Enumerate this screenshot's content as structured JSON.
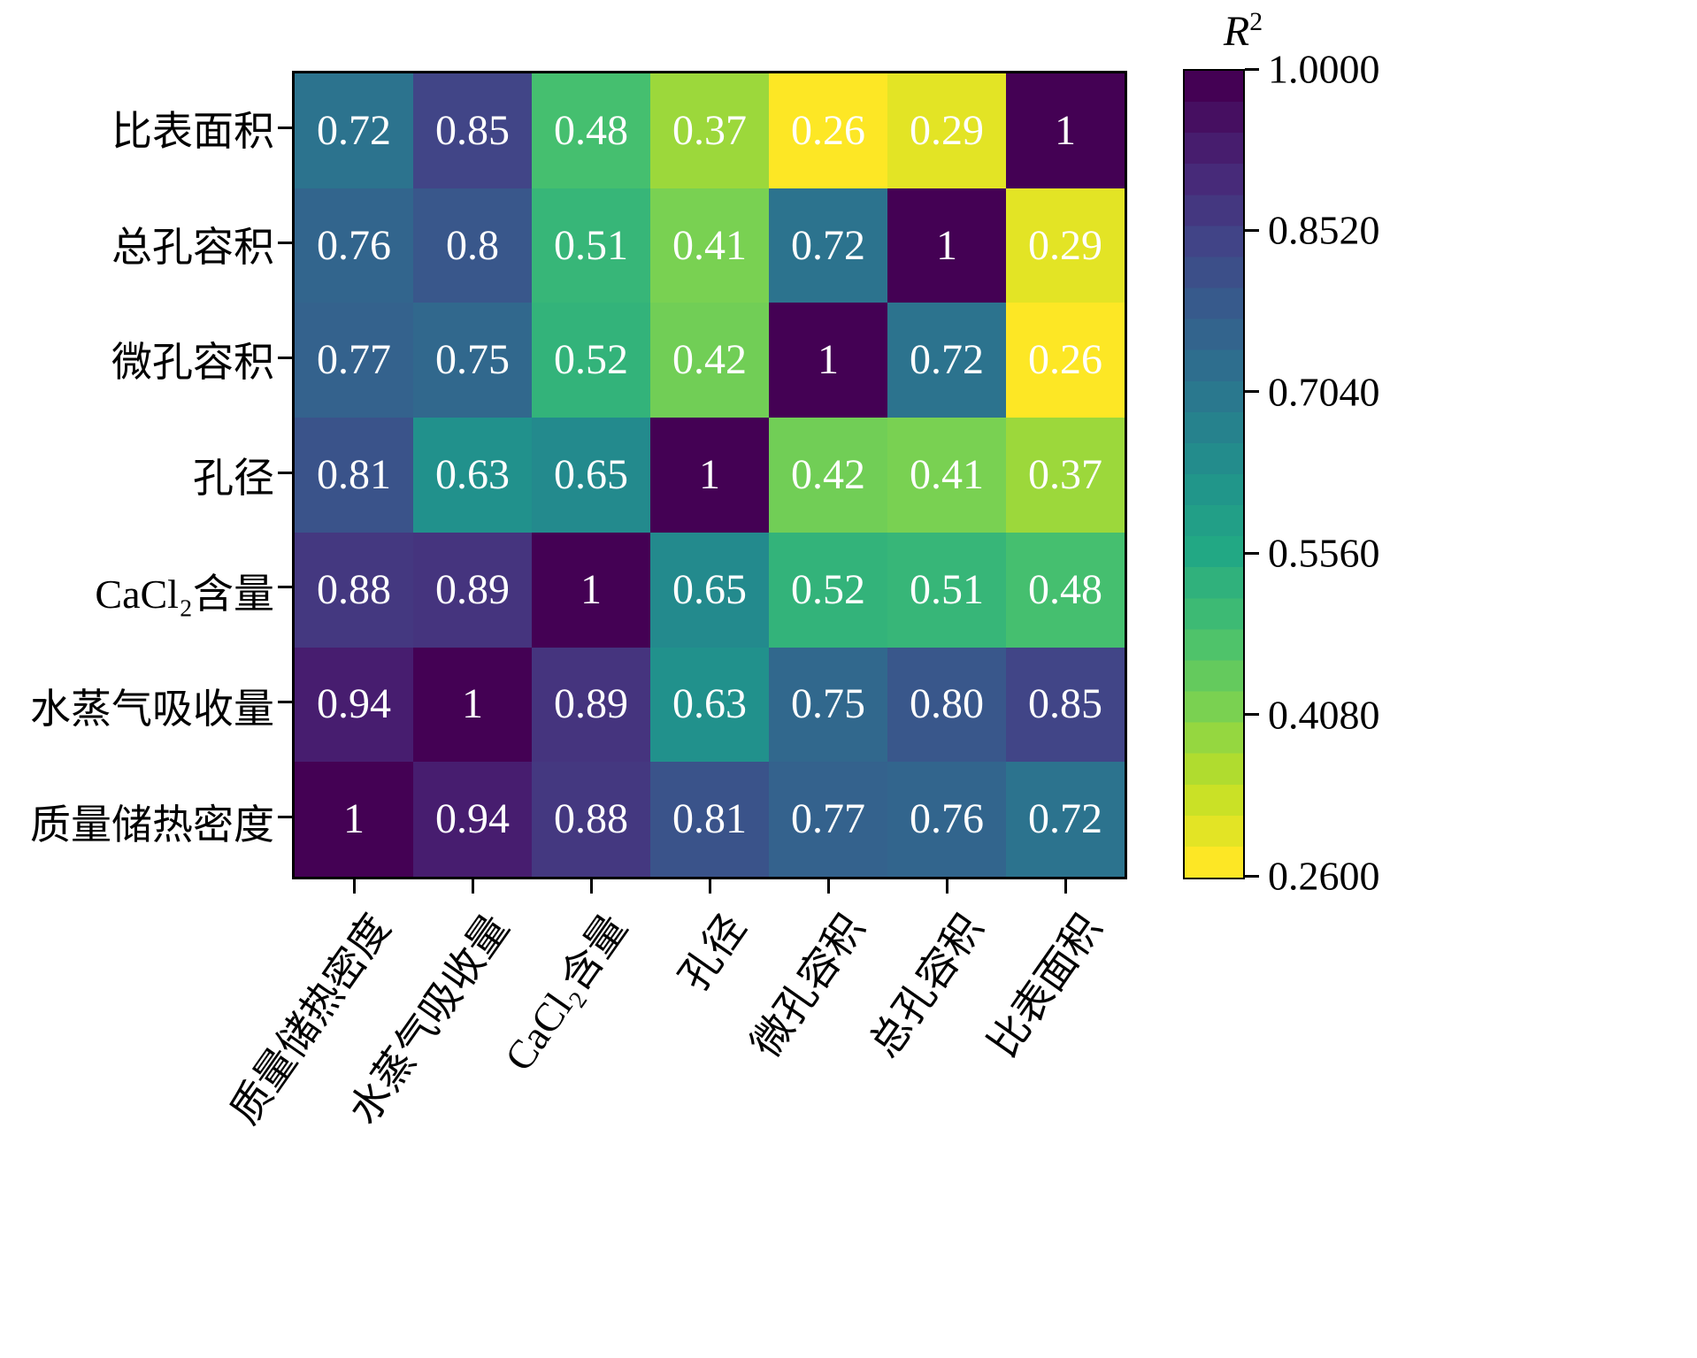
{
  "chart_data": {
    "type": "heatmap",
    "title": "",
    "row_labels_top_to_bottom": [
      "比表面积",
      "总孔容积",
      "微孔容积",
      "孔径",
      "CaCl₂含量",
      "水蒸气吸收量",
      "质量储热密度"
    ],
    "column_labels_left_to_right": [
      "质量储热密度",
      "水蒸气吸收量",
      "CaCl₂含量",
      "孔径",
      "微孔容积",
      "总孔容积",
      "比表面积"
    ],
    "values_display": [
      [
        "0.72",
        "0.85",
        "0.48",
        "0.37",
        "0.26",
        "0.29",
        "1"
      ],
      [
        "0.76",
        "0.8",
        "0.51",
        "0.41",
        "0.72",
        "1",
        "0.29"
      ],
      [
        "0.77",
        "0.75",
        "0.52",
        "0.42",
        "1",
        "0.72",
        "0.26"
      ],
      [
        "0.81",
        "0.63",
        "0.65",
        "1",
        "0.42",
        "0.41",
        "0.37"
      ],
      [
        "0.88",
        "0.89",
        "1",
        "0.65",
        "0.52",
        "0.51",
        "0.48"
      ],
      [
        "0.94",
        "1",
        "0.89",
        "0.63",
        "0.75",
        "0.80",
        "0.85"
      ],
      [
        "1",
        "0.94",
        "0.88",
        "0.81",
        "0.77",
        "0.76",
        "0.72"
      ]
    ],
    "cell_text_color": "#ffffff",
    "colorbar": {
      "symbol": "R",
      "exponent": "2",
      "tick_labels_top_to_bottom": [
        "1.0000",
        "0.8520",
        "0.7040",
        "0.5560",
        "0.4080",
        "0.2600"
      ],
      "vmin": 0.26,
      "vmax": 1.0,
      "orientation": "vertical",
      "colormap": "viridis-reversed-high-is-dark",
      "colormap_stops_low_to_high_t": [
        "#440154",
        "#482475",
        "#414487",
        "#355f8d",
        "#2a788e",
        "#21918c",
        "#22a884",
        "#44bf70",
        "#7ad151",
        "#bddf26",
        "#fde725"
      ]
    },
    "axis_frame_color": "#000000",
    "grid_on": false
  }
}
